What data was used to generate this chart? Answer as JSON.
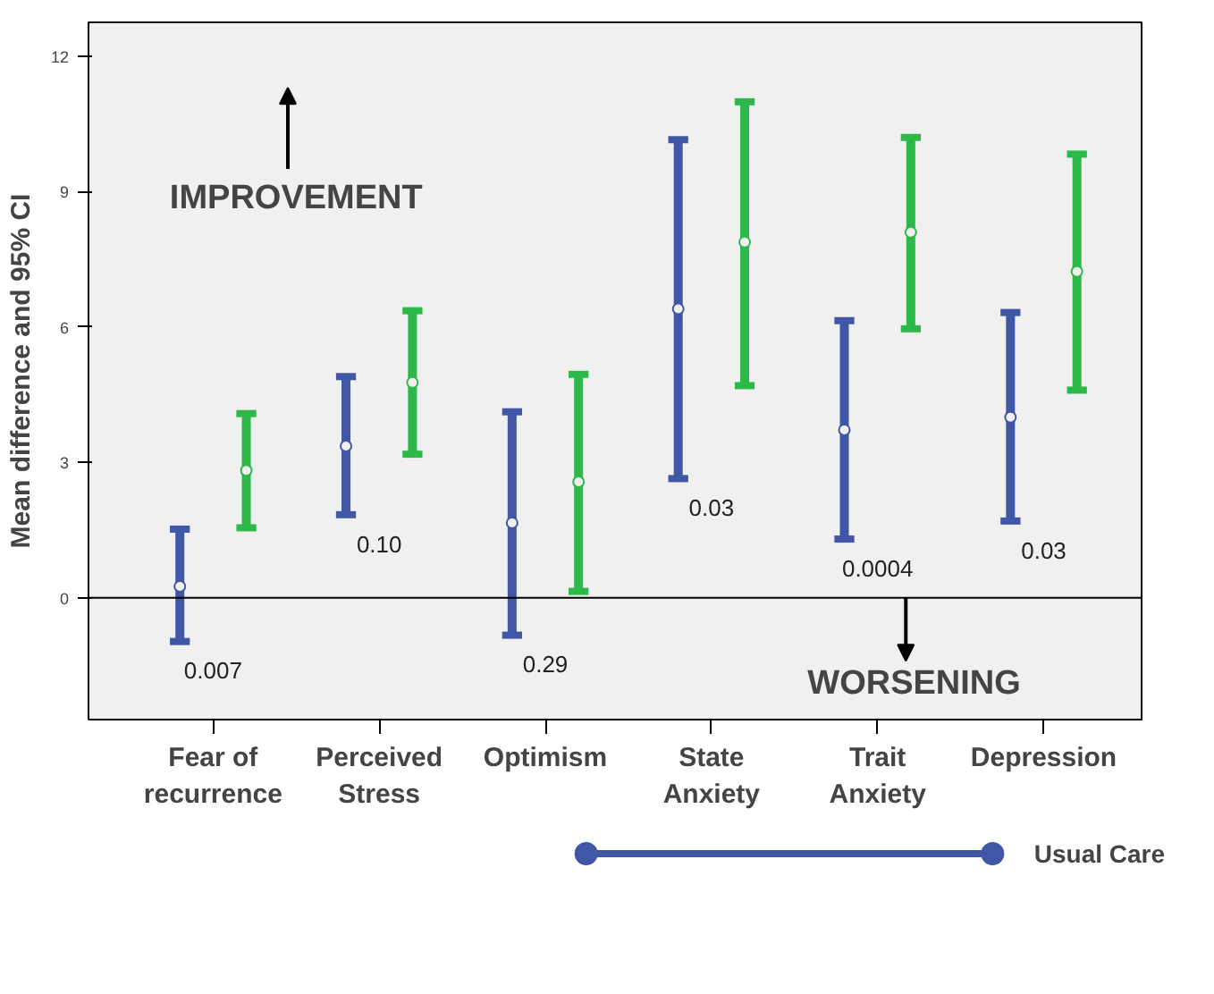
{
  "chart_data": {
    "type": "scatter",
    "ylabel": "Mean difference and 95% CI",
    "categories": [
      "Fear of recurrence",
      "Perceived Stress",
      "Optimism",
      "State Anxiety",
      "Trait Anxiety",
      "Depression"
    ],
    "series": [
      {
        "name": "Usual Care",
        "color": "#3f57a6",
        "values": [
          0.25,
          3.36,
          1.66,
          6.4,
          3.72,
          4.0
        ],
        "errors": [
          [
            -0.97,
            1.52
          ],
          [
            1.84,
            4.9
          ],
          [
            -0.83,
            4.12
          ],
          [
            2.64,
            10.15
          ],
          [
            1.3,
            6.14
          ],
          [
            1.7,
            6.32
          ]
        ]
      },
      {
        "color": "#2db84a",
        "values": [
          2.82,
          4.77,
          2.57,
          7.88,
          8.1,
          7.23
        ],
        "errors": [
          [
            1.55,
            4.08
          ],
          [
            3.18,
            6.36
          ],
          [
            0.14,
            4.95
          ],
          [
            4.7,
            10.99
          ],
          [
            5.96,
            10.2
          ],
          [
            4.6,
            9.83
          ]
        ]
      }
    ],
    "ylim": [
      -2.7,
      12.75
    ],
    "yticks": [
      0,
      3,
      6,
      9,
      12
    ],
    "grid": false,
    "legend": "bottom",
    "marker": "circle",
    "ref_lines": [
      {
        "axis": "y",
        "value": 0,
        "color": "#000000"
      }
    ],
    "annotations": [
      "IMPROVEMENT",
      "WORSENING",
      "0.007",
      "0.10",
      "0.29",
      "0.03",
      "0.0004",
      "0.03"
    ]
  }
}
